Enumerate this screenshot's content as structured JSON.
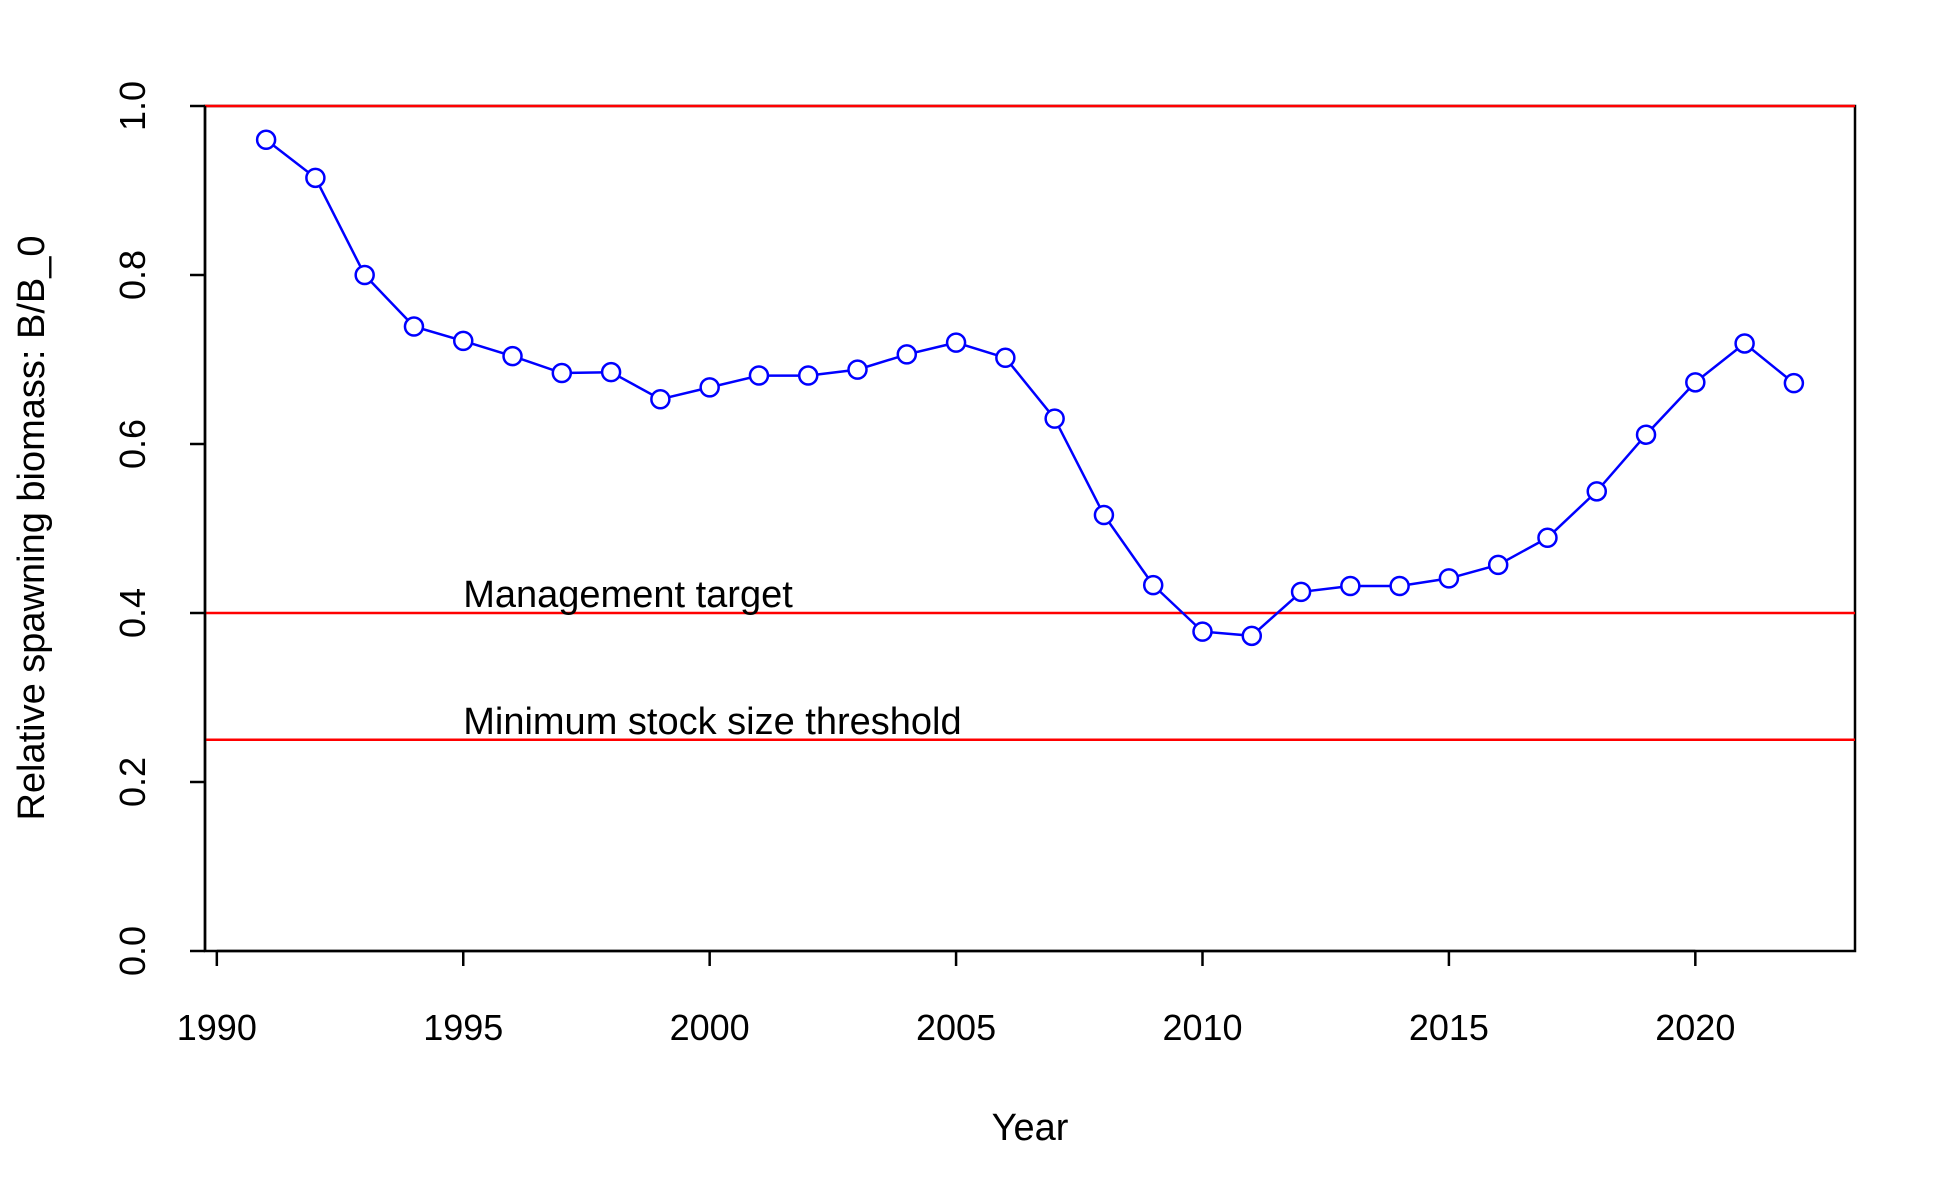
{
  "chart_data": {
    "type": "line",
    "title": "",
    "xlabel": "Year",
    "ylabel": "Relative spawning biomass: B/B_0",
    "xlim": [
      1989.76,
      2023.24
    ],
    "ylim": [
      0.0,
      1.0
    ],
    "x_ticks": [
      1990,
      1995,
      2000,
      2005,
      2010,
      2015,
      2020
    ],
    "y_ticks": [
      "0.0",
      "0.2",
      "0.4",
      "0.6",
      "0.8",
      "1.0"
    ],
    "grid": false,
    "legend": "none",
    "series": [
      {
        "color": "#0000ff",
        "marker": "open-circle",
        "x": [
          1991,
          1992,
          1993,
          1994,
          1995,
          1996,
          1997,
          1998,
          1999,
          2000,
          2001,
          2002,
          2003,
          2004,
          2005,
          2006,
          2007,
          2008,
          2009,
          2010,
          2011,
          2012,
          2013,
          2014,
          2015,
          2016,
          2017,
          2018,
          2019,
          2020,
          2021,
          2022
        ],
        "y": [
          0.96,
          0.915,
          0.8,
          0.739,
          0.722,
          0.704,
          0.684,
          0.685,
          0.653,
          0.667,
          0.681,
          0.681,
          0.688,
          0.706,
          0.72,
          0.702,
          0.63,
          0.516,
          0.433,
          0.378,
          0.373,
          0.425,
          0.432,
          0.432,
          0.441,
          0.457,
          0.489,
          0.544,
          0.611,
          0.673,
          0.719,
          0.672
        ]
      }
    ],
    "reference_lines": [
      {
        "y": 1.0,
        "color": "#ff0000",
        "label": ""
      },
      {
        "y": 0.4,
        "color": "#ff0000",
        "label": "Management target"
      },
      {
        "y": 0.25,
        "color": "#ff0000",
        "label": "Minimum stock size threshold"
      }
    ],
    "annotations": [
      {
        "x": 1995,
        "y": 0.4,
        "text": "Management target"
      },
      {
        "x": 1995,
        "y": 0.25,
        "text": "Minimum stock size threshold"
      }
    ]
  }
}
